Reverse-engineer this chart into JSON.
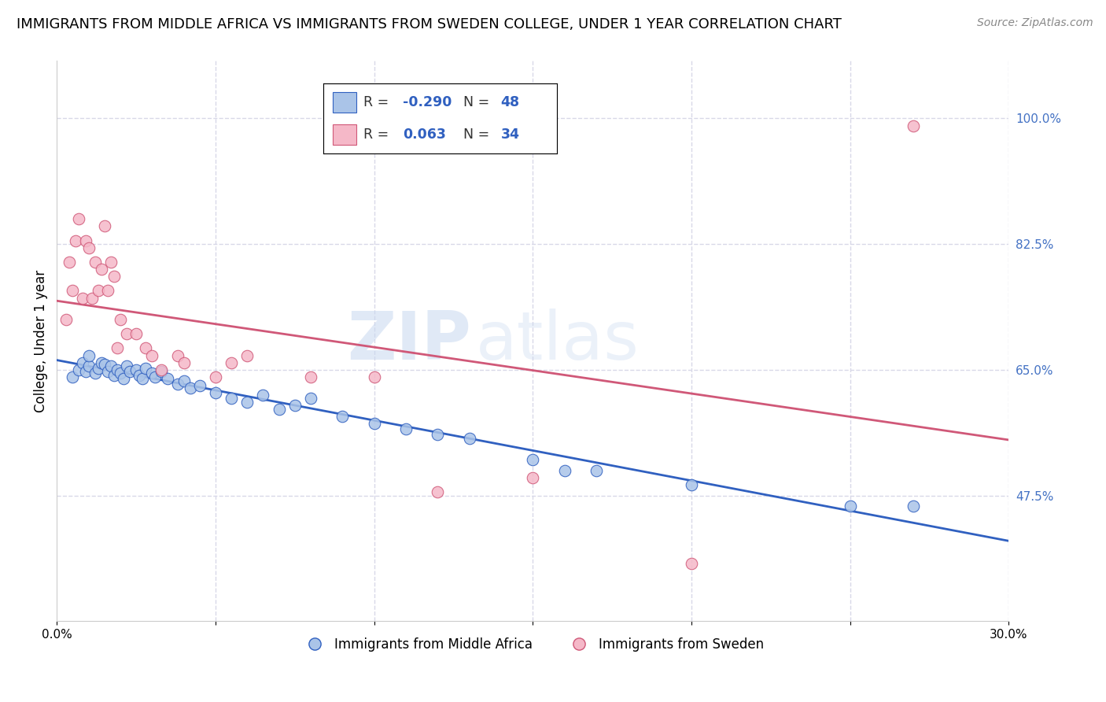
{
  "title": "IMMIGRANTS FROM MIDDLE AFRICA VS IMMIGRANTS FROM SWEDEN COLLEGE, UNDER 1 YEAR CORRELATION CHART",
  "source": "Source: ZipAtlas.com",
  "ylabel": "College, Under 1 year",
  "xlim": [
    0.0,
    0.3
  ],
  "ylim": [
    0.3,
    1.08
  ],
  "y_tick_right_labels": [
    "100.0%",
    "82.5%",
    "65.0%",
    "47.5%"
  ],
  "y_tick_right_values": [
    1.0,
    0.825,
    0.65,
    0.475
  ],
  "blue_R": -0.29,
  "blue_N": 48,
  "pink_R": 0.063,
  "pink_N": 34,
  "blue_color": "#aac4e8",
  "pink_color": "#f5b8c8",
  "blue_line_color": "#3060c0",
  "pink_line_color": "#d05878",
  "legend_label_blue": "Immigrants from Middle Africa",
  "legend_label_pink": "Immigrants from Sweden",
  "blue_scatter_x": [
    0.005,
    0.007,
    0.008,
    0.009,
    0.01,
    0.01,
    0.012,
    0.013,
    0.014,
    0.015,
    0.016,
    0.017,
    0.018,
    0.019,
    0.02,
    0.021,
    0.022,
    0.023,
    0.025,
    0.026,
    0.027,
    0.028,
    0.03,
    0.031,
    0.033,
    0.035,
    0.038,
    0.04,
    0.042,
    0.045,
    0.05,
    0.055,
    0.06,
    0.065,
    0.07,
    0.075,
    0.08,
    0.09,
    0.1,
    0.11,
    0.12,
    0.13,
    0.15,
    0.16,
    0.17,
    0.2,
    0.25,
    0.27
  ],
  "blue_scatter_y": [
    0.64,
    0.65,
    0.66,
    0.648,
    0.655,
    0.67,
    0.645,
    0.652,
    0.66,
    0.658,
    0.648,
    0.655,
    0.642,
    0.65,
    0.645,
    0.638,
    0.655,
    0.648,
    0.65,
    0.642,
    0.638,
    0.652,
    0.645,
    0.64,
    0.648,
    0.638,
    0.63,
    0.635,
    0.625,
    0.628,
    0.618,
    0.61,
    0.605,
    0.615,
    0.595,
    0.6,
    0.61,
    0.585,
    0.575,
    0.568,
    0.56,
    0.555,
    0.525,
    0.51,
    0.51,
    0.49,
    0.46,
    0.46
  ],
  "pink_scatter_x": [
    0.003,
    0.004,
    0.005,
    0.006,
    0.007,
    0.008,
    0.009,
    0.01,
    0.011,
    0.012,
    0.013,
    0.014,
    0.015,
    0.016,
    0.017,
    0.018,
    0.019,
    0.02,
    0.022,
    0.025,
    0.028,
    0.03,
    0.033,
    0.038,
    0.04,
    0.05,
    0.055,
    0.06,
    0.08,
    0.1,
    0.12,
    0.15,
    0.2,
    0.27
  ],
  "pink_scatter_y": [
    0.72,
    0.8,
    0.76,
    0.83,
    0.86,
    0.75,
    0.83,
    0.82,
    0.75,
    0.8,
    0.76,
    0.79,
    0.85,
    0.76,
    0.8,
    0.78,
    0.68,
    0.72,
    0.7,
    0.7,
    0.68,
    0.67,
    0.65,
    0.67,
    0.66,
    0.64,
    0.66,
    0.67,
    0.64,
    0.64,
    0.48,
    0.5,
    0.38,
    0.99
  ],
  "watermark_zip": "ZIP",
  "watermark_atlas": "atlas",
  "background_color": "#ffffff",
  "grid_color": "#d8d8e8"
}
